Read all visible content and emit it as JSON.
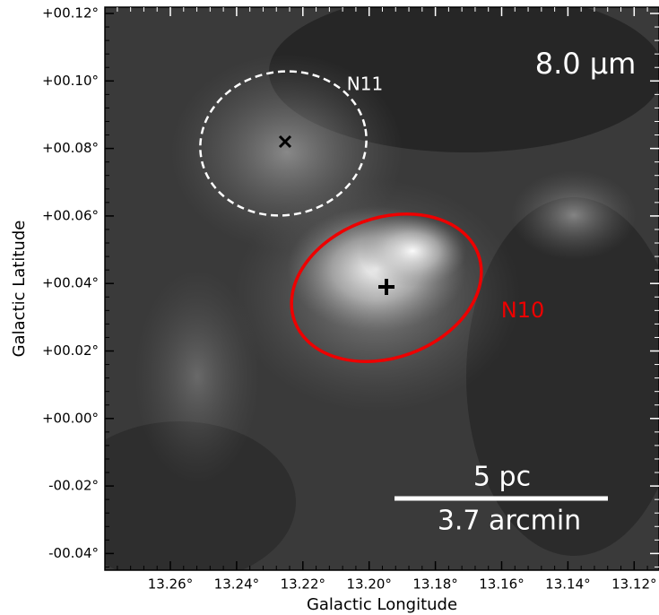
{
  "figure": {
    "band_label": "8.0 μm",
    "x_axis": {
      "label": "Galactic Longitude",
      "ticks": [
        "13.26°",
        "13.24°",
        "13.22°",
        "13.20°",
        "13.18°",
        "13.16°",
        "13.14°",
        "13.12°"
      ]
    },
    "y_axis": {
      "label": "Galactic Latitude",
      "ticks": [
        "+00.12°",
        "+00.10°",
        "+00.08°",
        "+00.06°",
        "+00.04°",
        "+00.02°",
        "+00.00°",
        "-00.02°",
        "-00.04°"
      ]
    },
    "regions": [
      {
        "label": "N11"
      },
      {
        "label": "N10"
      }
    ],
    "scale_bar": {
      "top": "5 pc",
      "bottom": "3.7 arcmin"
    }
  }
}
